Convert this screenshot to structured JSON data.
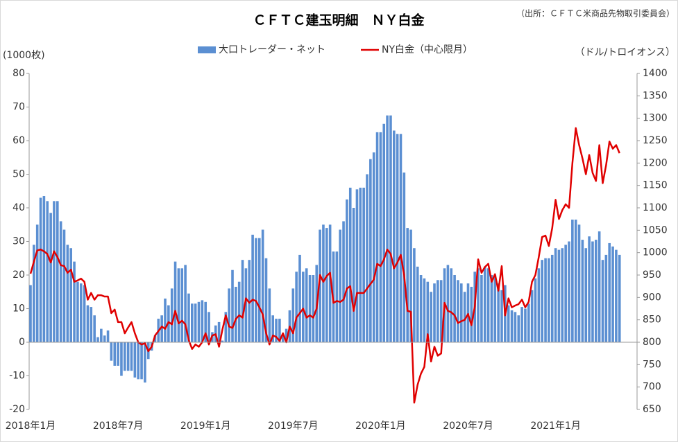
{
  "chart_data": {
    "type": "bar_line",
    "title": "ＣＦＴＣ建玉明細　ＮＹ白金",
    "source": "（出所：ＣＦＴＣ米商品先物取引委員会）",
    "y_label": "(1000枚)",
    "y2_label": "（ドル/トロイオンス）",
    "categories": [
      "2018年1月",
      null,
      null,
      null,
      null,
      null,
      null,
      null,
      null,
      null,
      null,
      null,
      null,
      null,
      null,
      null,
      null,
      null,
      null,
      null,
      null,
      null,
      null,
      null,
      null,
      null,
      "2018年7月",
      null,
      null,
      null,
      null,
      null,
      null,
      null,
      null,
      null,
      null,
      null,
      null,
      null,
      null,
      null,
      null,
      null,
      null,
      null,
      null,
      null,
      null,
      null,
      null,
      null,
      "2019年1月",
      null,
      null,
      null,
      null,
      null,
      null,
      null,
      null,
      null,
      null,
      null,
      null,
      null,
      null,
      null,
      null,
      null,
      null,
      null,
      null,
      null,
      null,
      null,
      null,
      null,
      "2019年7月",
      null,
      null,
      null,
      null,
      null,
      null,
      null,
      null,
      null,
      null,
      null,
      null,
      null,
      null,
      null,
      null,
      null,
      null,
      null,
      null,
      null,
      null,
      null,
      null,
      null,
      "2020年1月",
      null,
      null,
      null,
      null,
      null,
      null,
      null,
      null,
      null,
      null,
      null,
      null,
      null,
      null,
      null,
      null,
      null,
      null,
      null,
      null,
      null,
      null,
      null,
      null,
      null,
      "2020年7月",
      null,
      null,
      null,
      null,
      null,
      null,
      null,
      null,
      null,
      null,
      null,
      null,
      null,
      null,
      null,
      null,
      null,
      null,
      null,
      null,
      null,
      null,
      null,
      null,
      null,
      "2021年1月",
      null,
      null,
      null,
      null,
      null,
      null,
      null,
      null,
      null,
      null,
      null,
      null,
      null,
      null,
      null,
      null,
      null,
      null,
      null
    ],
    "series": [
      {
        "name": "大口トレーダー・ネット",
        "kind": "bar",
        "color": "#5b8fd2",
        "values": [
          17,
          29,
          35,
          43,
          43.5,
          42,
          38.5,
          42,
          42,
          36,
          33.5,
          29,
          28,
          24,
          18,
          17.5,
          17,
          11,
          10.5,
          8,
          1.5,
          4,
          2,
          3.5,
          -5.5,
          -7,
          -7,
          -10,
          -8.5,
          -8.5,
          -8.5,
          -10.5,
          -11,
          -11,
          -12,
          -5,
          -2.5,
          2,
          7,
          8,
          13,
          11,
          16,
          24,
          22,
          22,
          23,
          14.5,
          11.5,
          11.5,
          12,
          12.5,
          12,
          9,
          3,
          5,
          6,
          0.5,
          9,
          16,
          21.5,
          16.5,
          18,
          24.5,
          22,
          24.5,
          32,
          31,
          31,
          33.5,
          25,
          16,
          8,
          7,
          7,
          2,
          4,
          9.5,
          16,
          21,
          26,
          21,
          22,
          20,
          20,
          23,
          33.5,
          35,
          34,
          35,
          27,
          27,
          33.5,
          36,
          42.5,
          46,
          40,
          45.5,
          46,
          46,
          50,
          54.5,
          56.5,
          62.5,
          62.5,
          65,
          67.5,
          67.5,
          63,
          62,
          62,
          50.5,
          34,
          33.5,
          28,
          22.5,
          20,
          19,
          18,
          15,
          17.5,
          18.5,
          18.5,
          22,
          23,
          22,
          20,
          18.5,
          17.5,
          15,
          17.5,
          16.5,
          21,
          22,
          20,
          22.5,
          22,
          20,
          20,
          17.5,
          15.5,
          17,
          11,
          9.5,
          9,
          8,
          10.5,
          10,
          11.5,
          15.5,
          19,
          22,
          24.5,
          25,
          25,
          26,
          28,
          27.5,
          28,
          29,
          30,
          36.5,
          36.5,
          35,
          30.5,
          28,
          31.5,
          30,
          30.5,
          33,
          24.5,
          26,
          29.5,
          28.5,
          27.5,
          26
        ]
      },
      {
        "name": "NY白金（中心限月）",
        "kind": "line",
        "axis": "y2",
        "color": "#e00000",
        "values": [
          953,
          980,
          1005,
          1007,
          1003,
          997,
          978,
          1003,
          990,
          972,
          970,
          955,
          962,
          935,
          938,
          942,
          935,
          895,
          910,
          895,
          905,
          905,
          902,
          902,
          865,
          873,
          845,
          845,
          820,
          833,
          845,
          820,
          800,
          795,
          798,
          780,
          790,
          815,
          825,
          835,
          830,
          845,
          840,
          870,
          842,
          848,
          840,
          805,
          785,
          795,
          790,
          800,
          820,
          795,
          815,
          818,
          790,
          828,
          860,
          835,
          832,
          852,
          860,
          855,
          898,
          888,
          895,
          892,
          878,
          862,
          820,
          795,
          815,
          812,
          803,
          820,
          800,
          835,
          820,
          855,
          865,
          875,
          855,
          860,
          855,
          875,
          950,
          935,
          948,
          955,
          888,
          892,
          890,
          895,
          920,
          925,
          870,
          910,
          910,
          910,
          920,
          930,
          940,
          975,
          970,
          985,
          1007,
          997,
          965,
          978,
          995,
          950,
          870,
          868,
          665,
          705,
          730,
          745,
          818,
          757,
          790,
          770,
          775,
          888,
          870,
          867,
          860,
          843,
          847,
          850,
          863,
          838,
          880,
          985,
          955,
          968,
          975,
          935,
          952,
          915,
          970,
          860,
          898,
          878,
          882,
          885,
          895,
          878,
          890,
          935,
          950,
          990,
          1035,
          1038,
          1015,
          1055,
          1118,
          1075,
          1095,
          1108,
          1100,
          1200,
          1278,
          1240,
          1210,
          1175,
          1218,
          1178,
          1160,
          1240,
          1155,
          1195,
          1248,
          1232,
          1240,
          1222
        ]
      }
    ],
    "ylim": [
      -20,
      80
    ],
    "yticks": [
      -20,
      -10,
      0,
      10,
      20,
      30,
      40,
      50,
      60,
      70,
      80
    ],
    "y2lim": [
      650,
      1400
    ],
    "y2ticks": [
      650,
      700,
      750,
      800,
      850,
      900,
      950,
      1000,
      1050,
      1100,
      1150,
      1200,
      1250,
      1300,
      1350,
      1400
    ],
    "legend": "top"
  }
}
